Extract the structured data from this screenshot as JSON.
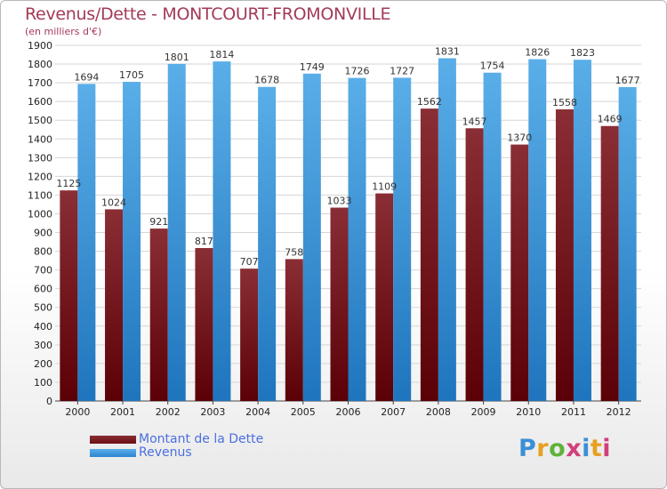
{
  "title": "Revenus/Dette - MONTCOURT-FROMONVILLE",
  "subtitle": "(en milliers d'€)",
  "colors": {
    "title": "#a33a57",
    "debt": "#6b0d12",
    "revenue": "#2a85d0",
    "legend_text": "#4a6fe0"
  },
  "legend": {
    "items": [
      {
        "label": "Montant de la Dette",
        "color": "#6b0d12"
      },
      {
        "label": "Revenus",
        "color": "#2a85d0"
      }
    ]
  },
  "brand": {
    "name": "Proxiti",
    "letter_colors": [
      "#3b8fd6",
      "#e8a020",
      "#5fb33b",
      "#d23f7a",
      "#3b8fd6",
      "#e8a020",
      "#d23f7a"
    ]
  },
  "chart_data": {
    "type": "bar",
    "categories": [
      "2000",
      "2001",
      "2002",
      "2003",
      "2004",
      "2005",
      "2006",
      "2007",
      "2008",
      "2009",
      "2010",
      "2011",
      "2012"
    ],
    "series": [
      {
        "name": "Montant de la Dette",
        "values": [
          1125,
          1024,
          921,
          817,
          707,
          758,
          1033,
          1109,
          1562,
          1457,
          1370,
          1558,
          1469
        ]
      },
      {
        "name": "Revenus",
        "values": [
          1694,
          1705,
          1801,
          1814,
          1678,
          1749,
          1726,
          1727,
          1831,
          1754,
          1826,
          1823,
          1677
        ]
      }
    ],
    "ylim": [
      0,
      1900
    ],
    "yticks": [
      0,
      100,
      200,
      300,
      400,
      500,
      600,
      700,
      800,
      900,
      1000,
      1100,
      1200,
      1300,
      1400,
      1500,
      1600,
      1700,
      1800,
      1900
    ],
    "grid": true,
    "legend_position": "bottom-left"
  }
}
